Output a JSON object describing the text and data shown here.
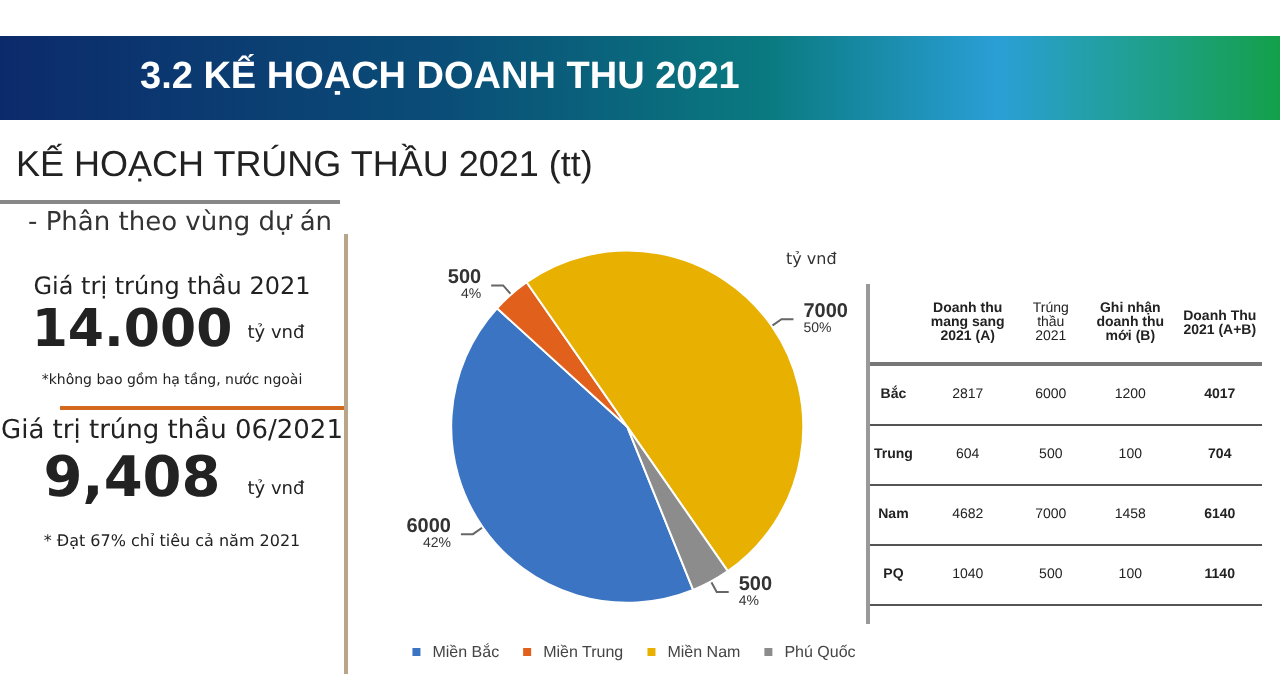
{
  "chart_data": [
    {
      "type": "pie",
      "title": "3.2 KẾ HOẠCH DOANH THU 2021",
      "subtitle": "KẾ HOẠCH TRÚNG THẦU 2021 (tt)",
      "annotations": [
        "- Phân theo vùng dự án",
        "tỷ vnđ"
      ],
      "categories": [
        "Miền Bắc",
        "Miền Trung",
        "Miền Nam",
        "Phú Quốc"
      ],
      "values": [
        6000,
        500,
        7000,
        500
      ],
      "colors": [
        "#3a74c2",
        "#e0601c",
        "#e8b000",
        "#8c8c8c"
      ],
      "value_labels": [
        "6000\n42%",
        "500\n4%",
        "7000\n50%",
        "500\n4%"
      ],
      "legend": "bottom"
    },
    {
      "type": "other",
      "annotations": [
        "Giá trị trúng thầu 2021",
        "14.000",
        "tỷ vnđ",
        "*không bao gồm hạ tầng, nước ngoài",
        "Giá trị trúng thầu 06/2021",
        "9,408",
        "tỷ vnđ",
        "* Đạt 67% chỉ tiêu cả năm 2021"
      ]
    },
    {
      "type": "other",
      "annotations": [
        "Doanh thu mang sang 2021 (A)",
        "Trúng thầu 2021",
        "Ghi nhận doanh thu mới (B)",
        "Doanh Thu 2021 (A+B)",
        "Bắc",
        "2817",
        "6000",
        "1200",
        "4017",
        "Trung",
        "604",
        "500",
        "100",
        "704",
        "Nam",
        "4682",
        "7000",
        "1458",
        "6140",
        "PQ",
        "1040",
        "500",
        "100",
        "1140"
      ]
    }
  ]
}
